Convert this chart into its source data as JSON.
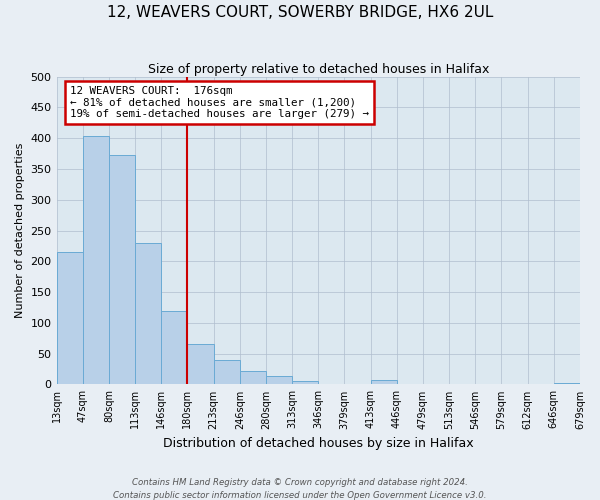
{
  "title": "12, WEAVERS COURT, SOWERBY BRIDGE, HX6 2UL",
  "subtitle": "Size of property relative to detached houses in Halifax",
  "xlabel": "Distribution of detached houses by size in Halifax",
  "ylabel": "Number of detached properties",
  "footnote1": "Contains HM Land Registry data © Crown copyright and database right 2024.",
  "footnote2": "Contains public sector information licensed under the Open Government Licence v3.0.",
  "bin_labels": [
    "13sqm",
    "47sqm",
    "80sqm",
    "113sqm",
    "146sqm",
    "180sqm",
    "213sqm",
    "246sqm",
    "280sqm",
    "313sqm",
    "346sqm",
    "379sqm",
    "413sqm",
    "446sqm",
    "479sqm",
    "513sqm",
    "546sqm",
    "579sqm",
    "612sqm",
    "646sqm",
    "679sqm"
  ],
  "bar_heights": [
    215,
    403,
    372,
    230,
    120,
    65,
    40,
    22,
    14,
    5,
    0,
    0,
    8,
    0,
    0,
    0,
    0,
    0,
    0,
    3
  ],
  "bar_color": "#b8d0e8",
  "bar_edge_color": "#6aaad4",
  "vline_x": 5,
  "vline_color": "#cc0000",
  "annotation_title": "12 WEAVERS COURT:  176sqm",
  "annotation_line1": "← 81% of detached houses are smaller (1,200)",
  "annotation_line2": "19% of semi-detached houses are larger (279) →",
  "annotation_box_color": "#cc0000",
  "ylim": [
    0,
    500
  ],
  "yticks": [
    0,
    50,
    100,
    150,
    200,
    250,
    300,
    350,
    400,
    450,
    500
  ],
  "bg_color": "#e8eef4",
  "plot_bg_color": "#dce8f0",
  "fig_width": 6.0,
  "fig_height": 5.0,
  "dpi": 100
}
